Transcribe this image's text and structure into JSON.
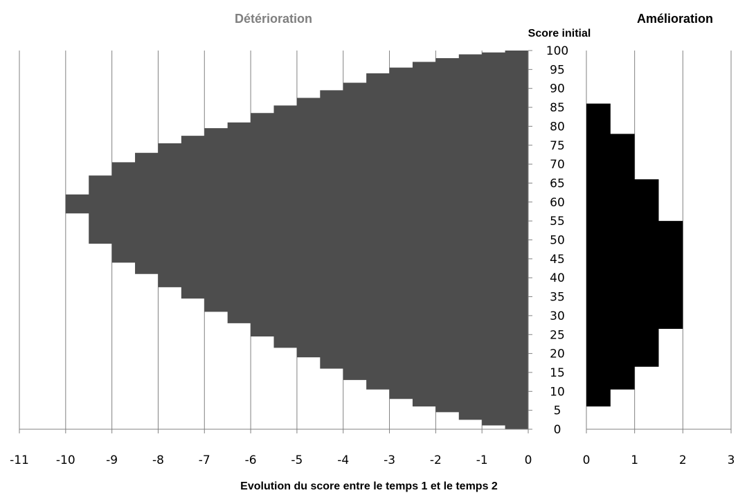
{
  "colors": {
    "deterioration_fill": "#4d4d4d",
    "amelioration_fill": "#000000",
    "left_title": "#7f7f7f",
    "gridline": "#808080"
  },
  "titles": {
    "left": "Détérioration",
    "right": "Amélioration",
    "y_axis": "Score initial",
    "x_axis": "Evolution du score entre le temps 1 et le temps 2"
  },
  "chart_data": [
    {
      "type": "bar",
      "orientation": "horizontal",
      "title": "Détérioration",
      "xlabel": "Evolution du score entre le temps 1 et le temps 2",
      "ylabel": "Score initial",
      "xlim": [
        -11,
        0
      ],
      "ylim": [
        0,
        100
      ],
      "x_ticks": [
        "-11",
        "-10",
        "-9",
        "-8",
        "-7",
        "-6",
        "-5",
        "-4",
        "-3",
        "-2",
        "-1",
        "0"
      ],
      "y_ticks": [
        "0",
        "5",
        "10",
        "15",
        "20",
        "25",
        "30",
        "35",
        "40",
        "45",
        "50",
        "55",
        "60",
        "65",
        "70",
        "75",
        "80",
        "85",
        "90",
        "95",
        "100"
      ],
      "grid": "vertical",
      "series": [
        {
          "steps": [
            {
              "y_from": 0.0,
              "y_to": 1.0,
              "x": -0.5
            },
            {
              "y_from": 1.0,
              "y_to": 2.5,
              "x": -1.0
            },
            {
              "y_from": 2.5,
              "y_to": 4.5,
              "x": -1.5
            },
            {
              "y_from": 4.5,
              "y_to": 6.0,
              "x": -2.0
            },
            {
              "y_from": 6.0,
              "y_to": 8.0,
              "x": -2.5
            },
            {
              "y_from": 8.0,
              "y_to": 10.5,
              "x": -3.0
            },
            {
              "y_from": 10.5,
              "y_to": 13.0,
              "x": -3.5
            },
            {
              "y_from": 13.0,
              "y_to": 16.0,
              "x": -4.0
            },
            {
              "y_from": 16.0,
              "y_to": 19.0,
              "x": -4.5
            },
            {
              "y_from": 19.0,
              "y_to": 21.5,
              "x": -5.0
            },
            {
              "y_from": 21.5,
              "y_to": 24.5,
              "x": -5.5
            },
            {
              "y_from": 24.5,
              "y_to": 28.0,
              "x": -6.0
            },
            {
              "y_from": 28.0,
              "y_to": 31.0,
              "x": -6.5
            },
            {
              "y_from": 31.0,
              "y_to": 34.5,
              "x": -7.0
            },
            {
              "y_from": 34.5,
              "y_to": 37.5,
              "x": -7.5
            },
            {
              "y_from": 37.5,
              "y_to": 41.0,
              "x": -8.0
            },
            {
              "y_from": 41.0,
              "y_to": 44.0,
              "x": -8.5
            },
            {
              "y_from": 44.0,
              "y_to": 49.0,
              "x": -9.0
            },
            {
              "y_from": 49.0,
              "y_to": 57.0,
              "x": -9.5
            },
            {
              "y_from": 57.0,
              "y_to": 62.0,
              "x": -10.0
            },
            {
              "y_from": 62.0,
              "y_to": 67.0,
              "x": -9.5
            },
            {
              "y_from": 67.0,
              "y_to": 70.5,
              "x": -9.0
            },
            {
              "y_from": 70.5,
              "y_to": 73.0,
              "x": -8.5
            },
            {
              "y_from": 73.0,
              "y_to": 75.5,
              "x": -8.0
            },
            {
              "y_from": 75.5,
              "y_to": 77.5,
              "x": -7.5
            },
            {
              "y_from": 77.5,
              "y_to": 79.5,
              "x": -7.0
            },
            {
              "y_from": 79.5,
              "y_to": 81.0,
              "x": -6.5
            },
            {
              "y_from": 81.0,
              "y_to": 83.5,
              "x": -6.0
            },
            {
              "y_from": 83.5,
              "y_to": 85.5,
              "x": -5.5
            },
            {
              "y_from": 85.5,
              "y_to": 87.5,
              "x": -5.0
            },
            {
              "y_from": 87.5,
              "y_to": 89.5,
              "x": -4.5
            },
            {
              "y_from": 89.5,
              "y_to": 91.5,
              "x": -4.0
            },
            {
              "y_from": 91.5,
              "y_to": 94.0,
              "x": -3.5
            },
            {
              "y_from": 94.0,
              "y_to": 95.5,
              "x": -3.0
            },
            {
              "y_from": 95.5,
              "y_to": 97.0,
              "x": -2.5
            },
            {
              "y_from": 97.0,
              "y_to": 98.0,
              "x": -2.0
            },
            {
              "y_from": 98.0,
              "y_to": 99.0,
              "x": -1.5
            },
            {
              "y_from": 99.0,
              "y_to": 99.5,
              "x": -1.0
            },
            {
              "y_from": 99.5,
              "y_to": 100.0,
              "x": -0.5
            }
          ]
        }
      ]
    },
    {
      "type": "bar",
      "orientation": "horizontal",
      "title": "Amélioration",
      "xlim": [
        0,
        3
      ],
      "ylim": [
        0,
        100
      ],
      "x_ticks": [
        "0",
        "1",
        "2",
        "3"
      ],
      "grid": "vertical",
      "series": [
        {
          "steps": [
            {
              "y_from": 6.0,
              "y_to": 10.5,
              "x": 0.5
            },
            {
              "y_from": 10.5,
              "y_to": 16.5,
              "x": 1.0
            },
            {
              "y_from": 16.5,
              "y_to": 26.5,
              "x": 1.5
            },
            {
              "y_from": 26.5,
              "y_to": 55.0,
              "x": 2.0
            },
            {
              "y_from": 55.0,
              "y_to": 66.0,
              "x": 1.5
            },
            {
              "y_from": 66.0,
              "y_to": 78.0,
              "x": 1.0
            },
            {
              "y_from": 78.0,
              "y_to": 86.0,
              "x": 0.5
            }
          ]
        }
      ]
    }
  ]
}
